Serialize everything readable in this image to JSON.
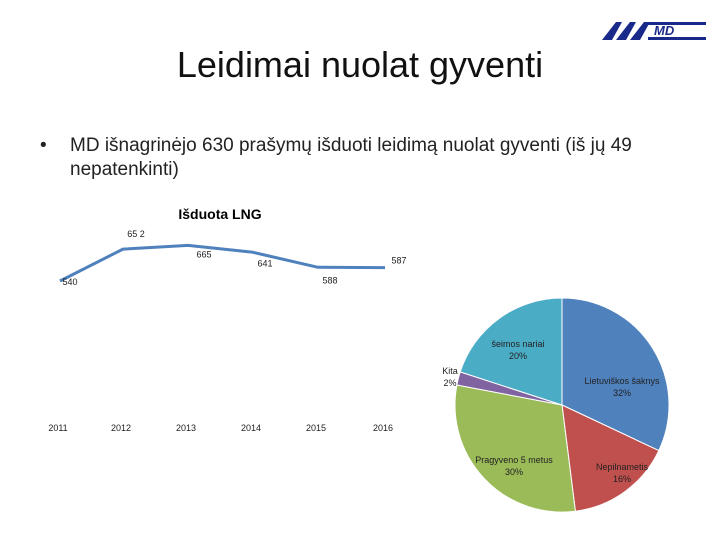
{
  "slide": {
    "title": "Leidimai nuolat gyventi",
    "bullet_marker": "•",
    "bullet_text": "MD išnagrinėjo 630 prašymų išduoti leidimą nuolat gyventi (iš jų 49 nepatenkinti)",
    "logo_name": "migration-department-logo"
  },
  "chart_data": [
    {
      "type": "line",
      "title": "Išduota LNG",
      "series": [
        {
          "x": [
            "2011",
            "2012",
            "2013",
            "2014",
            "2015",
            "2016"
          ],
          "values": [
            540,
            652,
            665,
            641,
            588,
            587
          ],
          "labels": [
            "540",
            "65 2",
            "665",
            "641",
            "588",
            "587"
          ],
          "color": "#4f81bd"
        }
      ],
      "x_ticks": [
        "2011",
        "2012",
        "2013",
        "2014",
        "2015",
        "2016"
      ],
      "grid": false
    },
    {
      "type": "pie",
      "slices": [
        {
          "label": "Lietuviškos šaknys",
          "percent_label": "32%",
          "value": 32,
          "color": "#4f81bd"
        },
        {
          "label": "Nepilnametis",
          "percent_label": "16%",
          "value": 16,
          "color": "#c0504d"
        },
        {
          "label": "Pragyveno 5 metus",
          "percent_label": "30%",
          "value": 30,
          "color": "#9bbb59"
        },
        {
          "label": "Kita",
          "percent_label": "2%",
          "value": 2,
          "color": "#8064a2"
        },
        {
          "label": "šeimos nariai",
          "percent_label": "20%",
          "value": 20,
          "color": "#4bacc6"
        }
      ]
    }
  ]
}
